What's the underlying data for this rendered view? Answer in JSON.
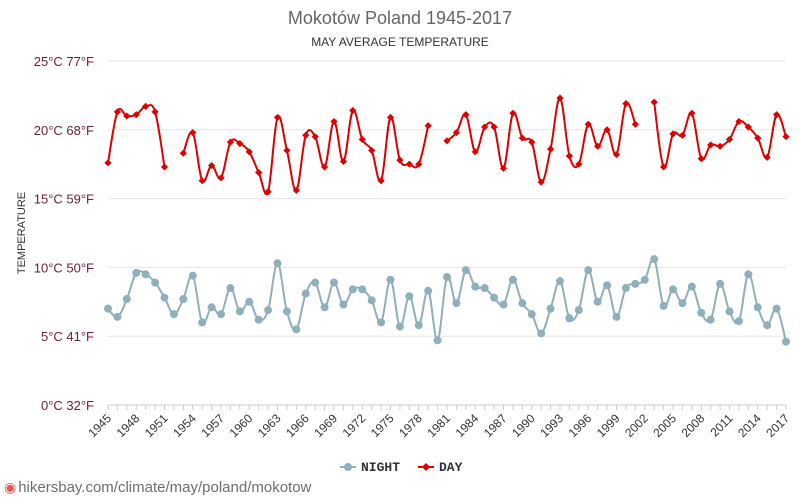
{
  "chart_data": {
    "type": "line",
    "title": "Mokotów Poland 1945-2017",
    "subtitle": "MAY AVERAGE TEMPERATURE",
    "ylabel": "TEMPERATURE",
    "xlabel": "",
    "ylim": [
      0,
      25
    ],
    "y_ticks": [
      {
        "value": 25,
        "label": "25°C 77°F"
      },
      {
        "value": 20,
        "label": "20°C 68°F"
      },
      {
        "value": 15,
        "label": "15°C 59°F"
      },
      {
        "value": 10,
        "label": "10°C 50°F"
      },
      {
        "value": 5,
        "label": "5°C 41°F"
      },
      {
        "value": 0,
        "label": "0°C 32°F"
      }
    ],
    "x": [
      1945,
      1946,
      1947,
      1948,
      1949,
      1950,
      1951,
      1952,
      1953,
      1954,
      1955,
      1956,
      1957,
      1958,
      1959,
      1960,
      1961,
      1962,
      1963,
      1964,
      1965,
      1966,
      1967,
      1968,
      1969,
      1970,
      1971,
      1972,
      1973,
      1974,
      1975,
      1976,
      1977,
      1978,
      1979,
      1980,
      1981,
      1982,
      1983,
      1984,
      1985,
      1986,
      1987,
      1988,
      1989,
      1990,
      1991,
      1992,
      1993,
      1994,
      1995,
      1996,
      1997,
      1998,
      1999,
      2000,
      2001,
      2002,
      2003,
      2004,
      2005,
      2006,
      2007,
      2008,
      2009,
      2010,
      2011,
      2012,
      2013,
      2014,
      2015,
      2016,
      2017
    ],
    "x_tick_labels": [
      "1945",
      "1948",
      "1951",
      "1954",
      "1957",
      "1960",
      "1963",
      "1966",
      "1969",
      "1972",
      "1975",
      "1978",
      "1981",
      "1984",
      "1987",
      "1990",
      "1993",
      "1996",
      "1999",
      "2002",
      "2005",
      "2008",
      "2011",
      "2014",
      "2017"
    ],
    "grid": true,
    "legend_position": "bottom-center",
    "series": [
      {
        "name": "NIGHT",
        "color": "#8fb0bb",
        "values": [
          7.0,
          6.4,
          7.7,
          9.6,
          9.5,
          8.9,
          7.8,
          6.6,
          7.7,
          9.4,
          6.0,
          7.1,
          6.6,
          8.5,
          6.8,
          7.5,
          6.2,
          6.9,
          10.3,
          6.8,
          5.5,
          8.1,
          8.9,
          7.1,
          8.9,
          7.3,
          8.4,
          8.4,
          7.6,
          6.0,
          9.1,
          5.7,
          7.9,
          5.8,
          8.3,
          4.7,
          9.3,
          7.4,
          9.8,
          8.6,
          8.5,
          7.8,
          7.3,
          9.1,
          7.4,
          6.6,
          5.2,
          7.0,
          9.0,
          6.3,
          6.9,
          9.8,
          7.5,
          8.7,
          6.4,
          8.5,
          8.8,
          9.1,
          10.6,
          7.2,
          8.4,
          7.4,
          8.6,
          6.7,
          6.2,
          8.8,
          6.8,
          6.1,
          9.5,
          7.1,
          5.8,
          7.0,
          4.6
        ]
      },
      {
        "name": "DAY",
        "color": "#dd0000",
        "values": [
          17.6,
          21.3,
          21.0,
          21.1,
          21.7,
          21.3,
          17.3,
          null,
          18.3,
          19.8,
          16.3,
          17.4,
          16.5,
          19.1,
          19.0,
          18.4,
          16.9,
          15.5,
          20.9,
          18.5,
          15.6,
          19.6,
          19.5,
          17.3,
          20.6,
          17.7,
          21.4,
          19.3,
          18.5,
          16.3,
          20.9,
          17.8,
          17.5,
          17.5,
          20.3,
          null,
          19.2,
          19.8,
          21.1,
          18.4,
          20.2,
          20.2,
          17.2,
          21.2,
          19.4,
          19.1,
          16.2,
          18.6,
          22.3,
          18.1,
          17.5,
          20.4,
          18.8,
          20.0,
          18.2,
          21.9,
          20.4,
          null,
          22.0,
          17.3,
          19.7,
          19.6,
          21.2,
          17.9,
          18.9,
          18.8,
          19.3,
          20.6,
          20.2,
          19.4,
          18.0,
          21.1,
          19.5
        ]
      }
    ]
  },
  "footer": {
    "pin_icon": "map-pin-icon",
    "text": "hikersbay.com/climate/may/poland/mokotow"
  }
}
